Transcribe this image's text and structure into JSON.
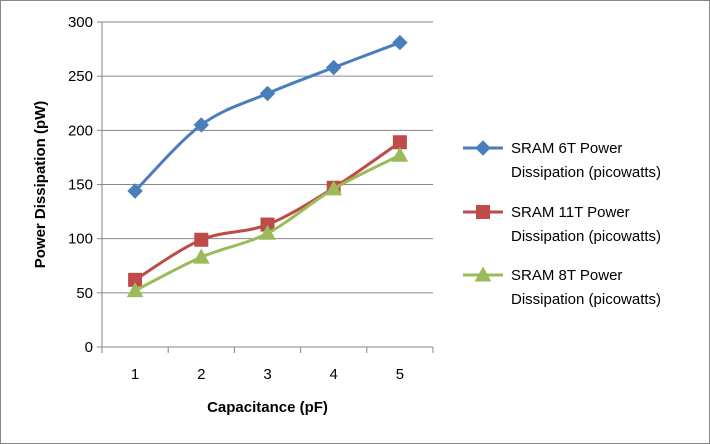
{
  "chart_data": {
    "type": "line",
    "title": "",
    "xlabel": "Capacitance (pF)",
    "ylabel": "Power Dissipation (pW)",
    "categories": [
      "1",
      "2",
      "3",
      "4",
      "5"
    ],
    "ylim": [
      0,
      300
    ],
    "yticks": [
      "0",
      "50",
      "100",
      "150",
      "200",
      "250",
      "300"
    ],
    "grid": true,
    "legend_position": "right",
    "series": [
      {
        "name": "SRAM 6T Power Dissipation (picowatts)",
        "legend_lines": [
          "SRAM 6T Power",
          "Dissipation (picowatts)"
        ],
        "marker": "diamond",
        "color": "#4A7EBB",
        "values": [
          144,
          205,
          234,
          258,
          281
        ]
      },
      {
        "name": "SRAM 11T Power Dissipation (picowatts)",
        "legend_lines": [
          "SRAM 11T Power",
          "Dissipation (picowatts)"
        ],
        "marker": "square",
        "color": "#BE4B48",
        "values": [
          62,
          99,
          113,
          147,
          189
        ]
      },
      {
        "name": "SRAM 8T Power Dissipation (picowatts)",
        "legend_lines": [
          "SRAM 8T Power",
          "Dissipation (picowatts)"
        ],
        "marker": "triangle",
        "color": "#9BBB59",
        "values": [
          52,
          83,
          105,
          146,
          177
        ]
      }
    ]
  }
}
